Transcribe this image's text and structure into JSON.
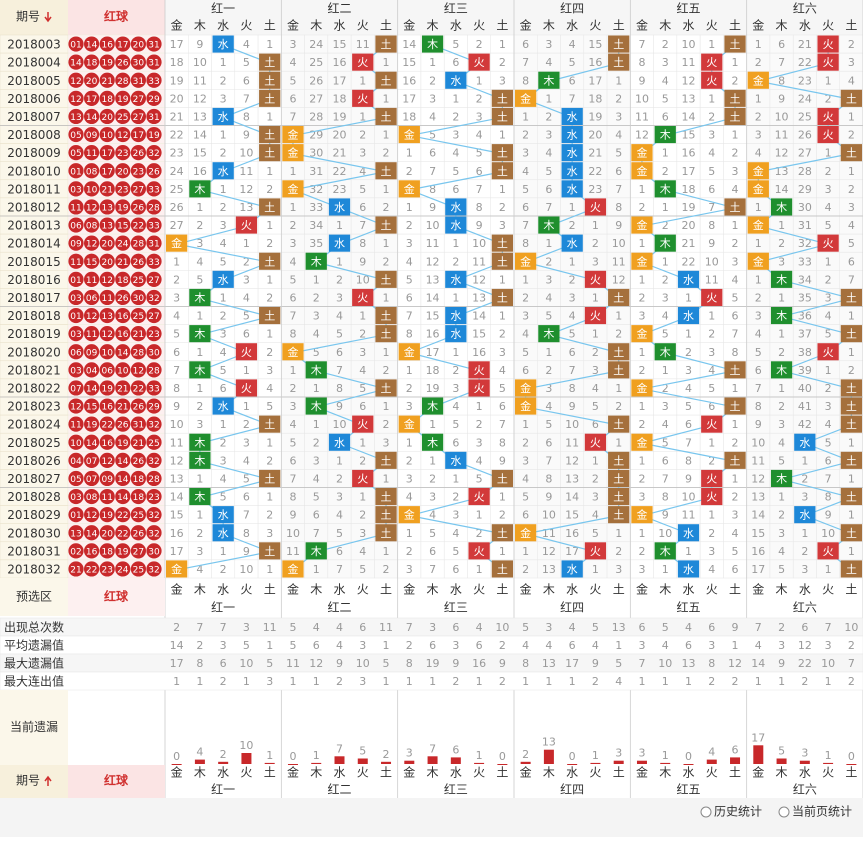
{
  "header": {
    "issue": "期号",
    "red": "红球",
    "groups": [
      "红一",
      "红二",
      "红三",
      "红四",
      "红五",
      "红六"
    ],
    "elements": [
      "金",
      "木",
      "水",
      "火",
      "土"
    ]
  },
  "element_colors": [
    "#f0a020",
    "#1f8f2e",
    "#1e88d8",
    "#d2393a",
    "#a5703c"
  ],
  "rows": [
    {
      "issue": "2018003",
      "balls": [
        "01",
        "14",
        "16",
        "17",
        "20",
        "31"
      ],
      "cells": [
        17,
        9,
        "水",
        4,
        1,
        3,
        24,
        15,
        11,
        "土",
        14,
        "木",
        5,
        2,
        1,
        6,
        3,
        4,
        15,
        "土",
        7,
        2,
        10,
        1,
        "土",
        1,
        6,
        21,
        "火",
        2
      ]
    },
    {
      "issue": "2018004",
      "balls": [
        "14",
        "18",
        "19",
        "26",
        "30",
        "31"
      ],
      "cells": [
        18,
        10,
        1,
        5,
        "土",
        4,
        25,
        16,
        "火",
        1,
        15,
        1,
        6,
        "火",
        2,
        7,
        4,
        5,
        16,
        "土",
        8,
        3,
        11,
        "火",
        1,
        2,
        7,
        22,
        "火",
        3
      ]
    },
    {
      "issue": "2018005",
      "balls": [
        "12",
        "20",
        "21",
        "28",
        "31",
        "33"
      ],
      "cells": [
        19,
        11,
        2,
        6,
        "土",
        5,
        26,
        17,
        1,
        "土",
        16,
        2,
        "水",
        1,
        3,
        8,
        "木",
        6,
        17,
        1,
        9,
        4,
        12,
        "火",
        2,
        "金",
        8,
        23,
        1,
        4
      ]
    },
    {
      "issue": "2018006",
      "balls": [
        "12",
        "17",
        "18",
        "19",
        "27",
        "29"
      ],
      "cells": [
        20,
        12,
        3,
        7,
        "土",
        6,
        27,
        18,
        "火",
        1,
        17,
        3,
        1,
        2,
        "土",
        "金",
        1,
        7,
        18,
        2,
        10,
        5,
        13,
        1,
        "土",
        1,
        9,
        24,
        2,
        "土"
      ]
    },
    {
      "issue": "2018007",
      "balls": [
        "13",
        "14",
        "20",
        "25",
        "27",
        "31"
      ],
      "cells": [
        21,
        13,
        "水",
        8,
        1,
        7,
        28,
        19,
        1,
        "土",
        18,
        4,
        2,
        3,
        "土",
        1,
        2,
        "水",
        19,
        3,
        11,
        6,
        14,
        2,
        "土",
        2,
        10,
        25,
        "火",
        1
      ]
    },
    {
      "issue": "2018008",
      "balls": [
        "05",
        "09",
        "10",
        "12",
        "17",
        "19"
      ],
      "cells": [
        22,
        14,
        1,
        9,
        "土",
        "金",
        29,
        20,
        2,
        1,
        "金",
        5,
        3,
        4,
        1,
        2,
        3,
        "水",
        20,
        4,
        12,
        "木",
        15,
        3,
        1,
        3,
        11,
        26,
        "火",
        2
      ]
    },
    {
      "issue": "2018009",
      "balls": [
        "05",
        "11",
        "17",
        "23",
        "26",
        "32"
      ],
      "cells": [
        23,
        15,
        2,
        10,
        "土",
        "金",
        30,
        21,
        3,
        2,
        1,
        6,
        4,
        5,
        "土",
        3,
        4,
        "水",
        21,
        5,
        "金",
        1,
        16,
        4,
        2,
        4,
        12,
        27,
        1,
        "土"
      ]
    },
    {
      "issue": "2018010",
      "balls": [
        "01",
        "08",
        "17",
        "20",
        "23",
        "26"
      ],
      "cells": [
        24,
        16,
        "水",
        11,
        1,
        1,
        31,
        22,
        4,
        "土",
        2,
        7,
        5,
        6,
        "土",
        4,
        5,
        "水",
        22,
        6,
        "金",
        2,
        17,
        5,
        3,
        "金",
        13,
        28,
        2,
        1
      ]
    },
    {
      "issue": "2018011",
      "balls": [
        "03",
        "10",
        "21",
        "23",
        "27",
        "33"
      ],
      "cells": [
        25,
        "木",
        1,
        12,
        2,
        "金",
        32,
        23,
        5,
        1,
        "金",
        8,
        6,
        7,
        1,
        5,
        6,
        "水",
        23,
        7,
        1,
        "木",
        18,
        6,
        4,
        "金",
        14,
        29,
        3,
        2
      ]
    },
    {
      "issue": "2018012",
      "balls": [
        "11",
        "12",
        "13",
        "19",
        "26",
        "28"
      ],
      "cells": [
        26,
        1,
        2,
        13,
        "土",
        1,
        33,
        "水",
        6,
        2,
        1,
        9,
        "水",
        8,
        2,
        6,
        7,
        1,
        "火",
        8,
        2,
        1,
        19,
        7,
        "土",
        1,
        "木",
        30,
        4,
        3
      ]
    },
    {
      "issue": "2018013",
      "balls": [
        "06",
        "08",
        "13",
        "15",
        "22",
        "33"
      ],
      "cells": [
        27,
        2,
        3,
        "火",
        1,
        2,
        34,
        1,
        7,
        "土",
        2,
        10,
        "水",
        9,
        3,
        7,
        "木",
        2,
        1,
        9,
        "金",
        2,
        20,
        8,
        1,
        "金",
        1,
        31,
        5,
        4
      ]
    },
    {
      "issue": "2018014",
      "balls": [
        "09",
        "12",
        "20",
        "24",
        "28",
        "31"
      ],
      "cells": [
        "金",
        3,
        4,
        1,
        2,
        3,
        35,
        "水",
        8,
        1,
        3,
        11,
        1,
        10,
        "土",
        8,
        1,
        "水",
        2,
        10,
        1,
        "木",
        21,
        9,
        2,
        1,
        2,
        32,
        "火",
        5
      ]
    },
    {
      "issue": "2018015",
      "balls": [
        "11",
        "15",
        "20",
        "21",
        "26",
        "33"
      ],
      "cells": [
        1,
        4,
        5,
        2,
        "土",
        4,
        "木",
        1,
        9,
        2,
        4,
        12,
        2,
        11,
        "土",
        "金",
        2,
        1,
        3,
        11,
        "金",
        1,
        22,
        10,
        3,
        "金",
        3,
        33,
        1,
        6
      ]
    },
    {
      "issue": "2018016",
      "balls": [
        "01",
        "11",
        "12",
        "18",
        "25",
        "27"
      ],
      "cells": [
        2,
        5,
        "水",
        3,
        1,
        5,
        1,
        2,
        10,
        "土",
        5,
        13,
        "水",
        12,
        1,
        1,
        3,
        2,
        "火",
        12,
        1,
        2,
        "水",
        11,
        4,
        1,
        "木",
        34,
        2,
        7
      ]
    },
    {
      "issue": "2018017",
      "balls": [
        "03",
        "06",
        "11",
        "26",
        "30",
        "32"
      ],
      "cells": [
        3,
        "木",
        1,
        4,
        2,
        6,
        2,
        3,
        "火",
        1,
        6,
        14,
        1,
        13,
        "土",
        2,
        4,
        3,
        1,
        "土",
        2,
        3,
        1,
        "火",
        5,
        2,
        1,
        35,
        3,
        "土"
      ]
    },
    {
      "issue": "2018018",
      "balls": [
        "01",
        "12",
        "13",
        "16",
        "25",
        "27"
      ],
      "cells": [
        4,
        1,
        2,
        5,
        "土",
        7,
        3,
        4,
        1,
        "土",
        7,
        15,
        "水",
        14,
        1,
        3,
        5,
        4,
        "火",
        1,
        3,
        4,
        "水",
        1,
        6,
        3,
        "木",
        36,
        4,
        1
      ]
    },
    {
      "issue": "2018019",
      "balls": [
        "03",
        "11",
        "12",
        "16",
        "21",
        "23"
      ],
      "cells": [
        5,
        "木",
        3,
        6,
        1,
        8,
        4,
        5,
        2,
        "土",
        8,
        16,
        "水",
        15,
        2,
        4,
        "木",
        5,
        1,
        2,
        "金",
        5,
        1,
        2,
        7,
        4,
        1,
        37,
        5,
        "土"
      ]
    },
    {
      "issue": "2018020",
      "balls": [
        "06",
        "09",
        "10",
        "14",
        "28",
        "30"
      ],
      "cells": [
        6,
        1,
        4,
        "火",
        2,
        "金",
        5,
        6,
        3,
        1,
        "金",
        17,
        1,
        16,
        3,
        5,
        1,
        6,
        2,
        "土",
        1,
        "木",
        2,
        3,
        8,
        5,
        2,
        38,
        "火",
        1
      ]
    },
    {
      "issue": "2018021",
      "balls": [
        "03",
        "04",
        "06",
        "10",
        "12",
        "28"
      ],
      "cells": [
        7,
        "木",
        5,
        1,
        3,
        1,
        "木",
        7,
        4,
        2,
        1,
        18,
        2,
        "火",
        4,
        6,
        2,
        7,
        3,
        "土",
        2,
        1,
        3,
        4,
        "土",
        6,
        "木",
        39,
        1,
        2
      ]
    },
    {
      "issue": "2018022",
      "balls": [
        "07",
        "14",
        "19",
        "21",
        "22",
        "33"
      ],
      "cells": [
        8,
        1,
        6,
        "火",
        4,
        2,
        1,
        8,
        5,
        "土",
        2,
        19,
        3,
        "火",
        5,
        "金",
        3,
        8,
        4,
        1,
        "金",
        2,
        4,
        5,
        1,
        7,
        1,
        40,
        2,
        "土"
      ]
    },
    {
      "issue": "2018023",
      "balls": [
        "12",
        "15",
        "16",
        "21",
        "26",
        "29"
      ],
      "cells": [
        9,
        2,
        "水",
        1,
        5,
        3,
        "木",
        9,
        6,
        1,
        3,
        "木",
        4,
        1,
        6,
        "金",
        4,
        9,
        5,
        2,
        1,
        3,
        5,
        6,
        "土",
        8,
        2,
        41,
        3,
        "土"
      ]
    },
    {
      "issue": "2018024",
      "balls": [
        "11",
        "19",
        "22",
        "26",
        "31",
        "32"
      ],
      "cells": [
        10,
        3,
        1,
        2,
        "土",
        4,
        1,
        10,
        "火",
        2,
        "金",
        1,
        5,
        2,
        7,
        1,
        5,
        10,
        6,
        "土",
        2,
        4,
        6,
        "火",
        1,
        9,
        3,
        42,
        4,
        "土"
      ]
    },
    {
      "issue": "2018025",
      "balls": [
        "10",
        "14",
        "16",
        "19",
        "21",
        "25"
      ],
      "cells": [
        11,
        "木",
        2,
        3,
        1,
        5,
        2,
        "水",
        1,
        3,
        1,
        "木",
        6,
        3,
        8,
        2,
        6,
        11,
        "火",
        1,
        "金",
        5,
        7,
        1,
        2,
        10,
        4,
        "水",
        5,
        1
      ]
    },
    {
      "issue": "2018026",
      "balls": [
        "04",
        "07",
        "12",
        "14",
        "26",
        "32"
      ],
      "cells": [
        12,
        "木",
        3,
        4,
        2,
        6,
        3,
        1,
        2,
        "土",
        2,
        1,
        "水",
        4,
        9,
        3,
        7,
        12,
        1,
        "土",
        1,
        6,
        8,
        2,
        "土",
        11,
        5,
        1,
        6,
        "土"
      ]
    },
    {
      "issue": "2018027",
      "balls": [
        "05",
        "07",
        "09",
        "14",
        "18",
        "28"
      ],
      "cells": [
        13,
        1,
        4,
        5,
        "土",
        7,
        4,
        2,
        "火",
        1,
        3,
        2,
        1,
        5,
        "土",
        4,
        8,
        13,
        2,
        "土",
        2,
        7,
        9,
        "火",
        1,
        12,
        "木",
        2,
        7,
        1
      ]
    },
    {
      "issue": "2018028",
      "balls": [
        "03",
        "08",
        "11",
        "14",
        "18",
        "23"
      ],
      "cells": [
        14,
        "木",
        5,
        6,
        1,
        8,
        5,
        3,
        1,
        "土",
        4,
        3,
        2,
        "火",
        1,
        5,
        9,
        14,
        3,
        "土",
        3,
        8,
        10,
        "火",
        2,
        13,
        1,
        3,
        8,
        "土"
      ]
    },
    {
      "issue": "2018029",
      "balls": [
        "01",
        "12",
        "19",
        "22",
        "25",
        "32"
      ],
      "cells": [
        15,
        1,
        "水",
        7,
        2,
        9,
        6,
        4,
        2,
        "土",
        "金",
        4,
        3,
        1,
        2,
        6,
        10,
        15,
        4,
        "土",
        "金",
        9,
        11,
        1,
        3,
        14,
        2,
        "水",
        9,
        1
      ]
    },
    {
      "issue": "2018030",
      "balls": [
        "13",
        "14",
        "20",
        "22",
        "26",
        "32"
      ],
      "cells": [
        16,
        2,
        "水",
        8,
        3,
        10,
        7,
        5,
        3,
        "土",
        1,
        5,
        4,
        2,
        "土",
        "金",
        11,
        16,
        5,
        1,
        1,
        10,
        "水",
        2,
        4,
        15,
        3,
        1,
        10,
        "土"
      ]
    },
    {
      "issue": "2018031",
      "balls": [
        "02",
        "16",
        "18",
        "19",
        "27",
        "30"
      ],
      "cells": [
        17,
        3,
        1,
        9,
        "土",
        11,
        "木",
        6,
        4,
        1,
        2,
        6,
        5,
        "火",
        1,
        1,
        12,
        17,
        "火",
        2,
        2,
        "木",
        1,
        3,
        5,
        16,
        4,
        2,
        "火",
        1
      ]
    },
    {
      "issue": "2018032",
      "balls": [
        "21",
        "22",
        "23",
        "24",
        "25",
        "32"
      ],
      "cells": [
        "金",
        4,
        2,
        10,
        1,
        "金",
        1,
        7,
        5,
        2,
        3,
        7,
        6,
        1,
        "土",
        2,
        13,
        "水",
        1,
        3,
        3,
        1,
        "水",
        4,
        6,
        17,
        5,
        3,
        1,
        "土"
      ]
    }
  ],
  "footer": {
    "preselect": "预选区",
    "red": "红球",
    "issue": "期号",
    "stats": [
      {
        "label": "出现总次数",
        "values": [
          2,
          7,
          7,
          3,
          11,
          5,
          4,
          4,
          6,
          11,
          7,
          3,
          6,
          4,
          10,
          5,
          3,
          4,
          5,
          13,
          6,
          5,
          4,
          6,
          9,
          7,
          2,
          6,
          7,
          10
        ]
      },
      {
        "label": "平均遗漏值",
        "values": [
          14,
          2,
          3,
          5,
          1,
          5,
          6,
          4,
          3,
          1,
          2,
          6,
          3,
          6,
          2,
          4,
          4,
          6,
          4,
          1,
          3,
          4,
          6,
          3,
          1,
          4,
          3,
          12,
          3,
          2
        ]
      },
      {
        "label": "最大遗漏值",
        "values": [
          17,
          8,
          6,
          10,
          5,
          11,
          12,
          9,
          10,
          5,
          8,
          19,
          9,
          16,
          9,
          8,
          13,
          17,
          9,
          5,
          7,
          10,
          13,
          8,
          12,
          14,
          9,
          22,
          10,
          7
        ]
      },
      {
        "label": "最大连出值",
        "values": [
          1,
          1,
          2,
          1,
          3,
          1,
          1,
          2,
          3,
          1,
          1,
          1,
          2,
          1,
          2,
          1,
          1,
          1,
          2,
          4,
          1,
          1,
          1,
          2,
          2,
          1,
          1,
          2,
          1,
          2
        ]
      }
    ],
    "current": {
      "label": "当前遗漏",
      "values": [
        0,
        4,
        2,
        10,
        1,
        0,
        1,
        7,
        5,
        2,
        3,
        7,
        6,
        1,
        0,
        2,
        13,
        0,
        1,
        3,
        3,
        1,
        0,
        4,
        6,
        17,
        5,
        3,
        1,
        0
      ]
    }
  },
  "buttons": [
    "历史统计",
    "当前页统计"
  ]
}
